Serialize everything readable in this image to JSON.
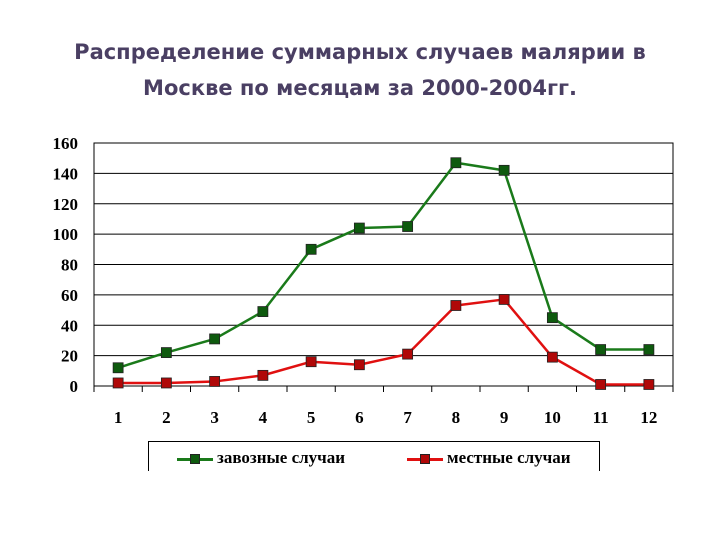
{
  "title_line1": "Распределение суммарных случаев малярии в",
  "title_line2": "Москве по месяцам за 2000-2004гг.",
  "chart_data": {
    "type": "line",
    "title": "Распределение суммарных случаев малярии в Москве по месяцам за 2000-2004гг.",
    "categories": [
      "1",
      "2",
      "3",
      "4",
      "5",
      "6",
      "7",
      "8",
      "9",
      "10",
      "11",
      "12"
    ],
    "ylim": [
      0,
      160
    ],
    "yticks": [
      0,
      20,
      40,
      60,
      80,
      100,
      120,
      140,
      160
    ],
    "grid": true,
    "legend_position": "bottom",
    "series": [
      {
        "name": "завозные случаи",
        "color": "#1a7a1a",
        "marker_color": "#0e5a0e",
        "values": [
          12,
          22,
          31,
          49,
          90,
          104,
          105,
          147,
          142,
          45,
          24,
          24
        ]
      },
      {
        "name": "местные случаи",
        "color": "#e01010",
        "marker_color": "#b00808",
        "values": [
          2,
          2,
          3,
          7,
          16,
          14,
          21,
          53,
          57,
          19,
          1,
          1
        ]
      }
    ]
  }
}
